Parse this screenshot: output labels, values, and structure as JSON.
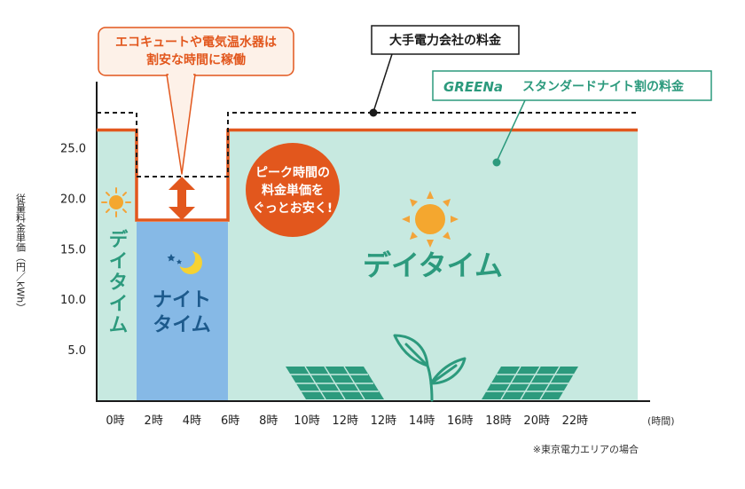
{
  "chart_data": {
    "type": "step-area",
    "ylabel": "従量料金単価（円／kWh）",
    "y_ticks": [
      "5.0",
      "10.0",
      "15.0",
      "20.0",
      "25.0"
    ],
    "ylim": [
      0,
      30
    ],
    "x_ticks": [
      "0時",
      "2時",
      "4時",
      "6時",
      "8時",
      "10時",
      "12時",
      "12時",
      "14時",
      "16時",
      "18時",
      "20時",
      "22時"
    ],
    "x_unit": "(時間)",
    "series": [
      {
        "name": "大手電力会社の料金",
        "style": "dashed-black",
        "segments": [
          {
            "from": "0時",
            "to": "2時",
            "value": 28.8
          },
          {
            "from": "2時",
            "to": "6時",
            "value": 22.5
          },
          {
            "from": "6時",
            "to": "22時",
            "value": 28.8
          }
        ]
      },
      {
        "name": "GREENa スタンダードナイト割の料金",
        "style": "solid-orange",
        "segments": [
          {
            "from": "0時",
            "to": "2時",
            "value": 26.8
          },
          {
            "from": "2時",
            "to": "6時",
            "value": 17.8
          },
          {
            "from": "6時",
            "to": "22時",
            "value": 26.8
          }
        ]
      }
    ]
  },
  "labels": {
    "daytime_left": "デイタイム",
    "daytime_right": "デイタイム",
    "night_line1": "ナイト",
    "night_line2": "タイム",
    "callout_line1": "エコキュートや電気温水器は",
    "callout_line2": "割安な時間に稼働",
    "major_label": "大手電力会社の料金",
    "greena_logo": "GREENa",
    "greena_label": "スタンダードナイト割の料金",
    "peak_line1": "ピーク時間の",
    "peak_line2": "料金単価を",
    "peak_line3": "ぐっとお安く!",
    "footnote": "※東京電力エリアの場合"
  },
  "colors": {
    "orange": "#e2571d",
    "mint": "#c7e9e0",
    "night_blue": "#86b9e6",
    "teal": "#2c9a7d",
    "navy": "#1d5a8c",
    "callout_fill": "#fdf1e8"
  },
  "icons": [
    "sun-icon",
    "moon-icon",
    "solar-panel-icon",
    "leaf-plant-icon"
  ]
}
